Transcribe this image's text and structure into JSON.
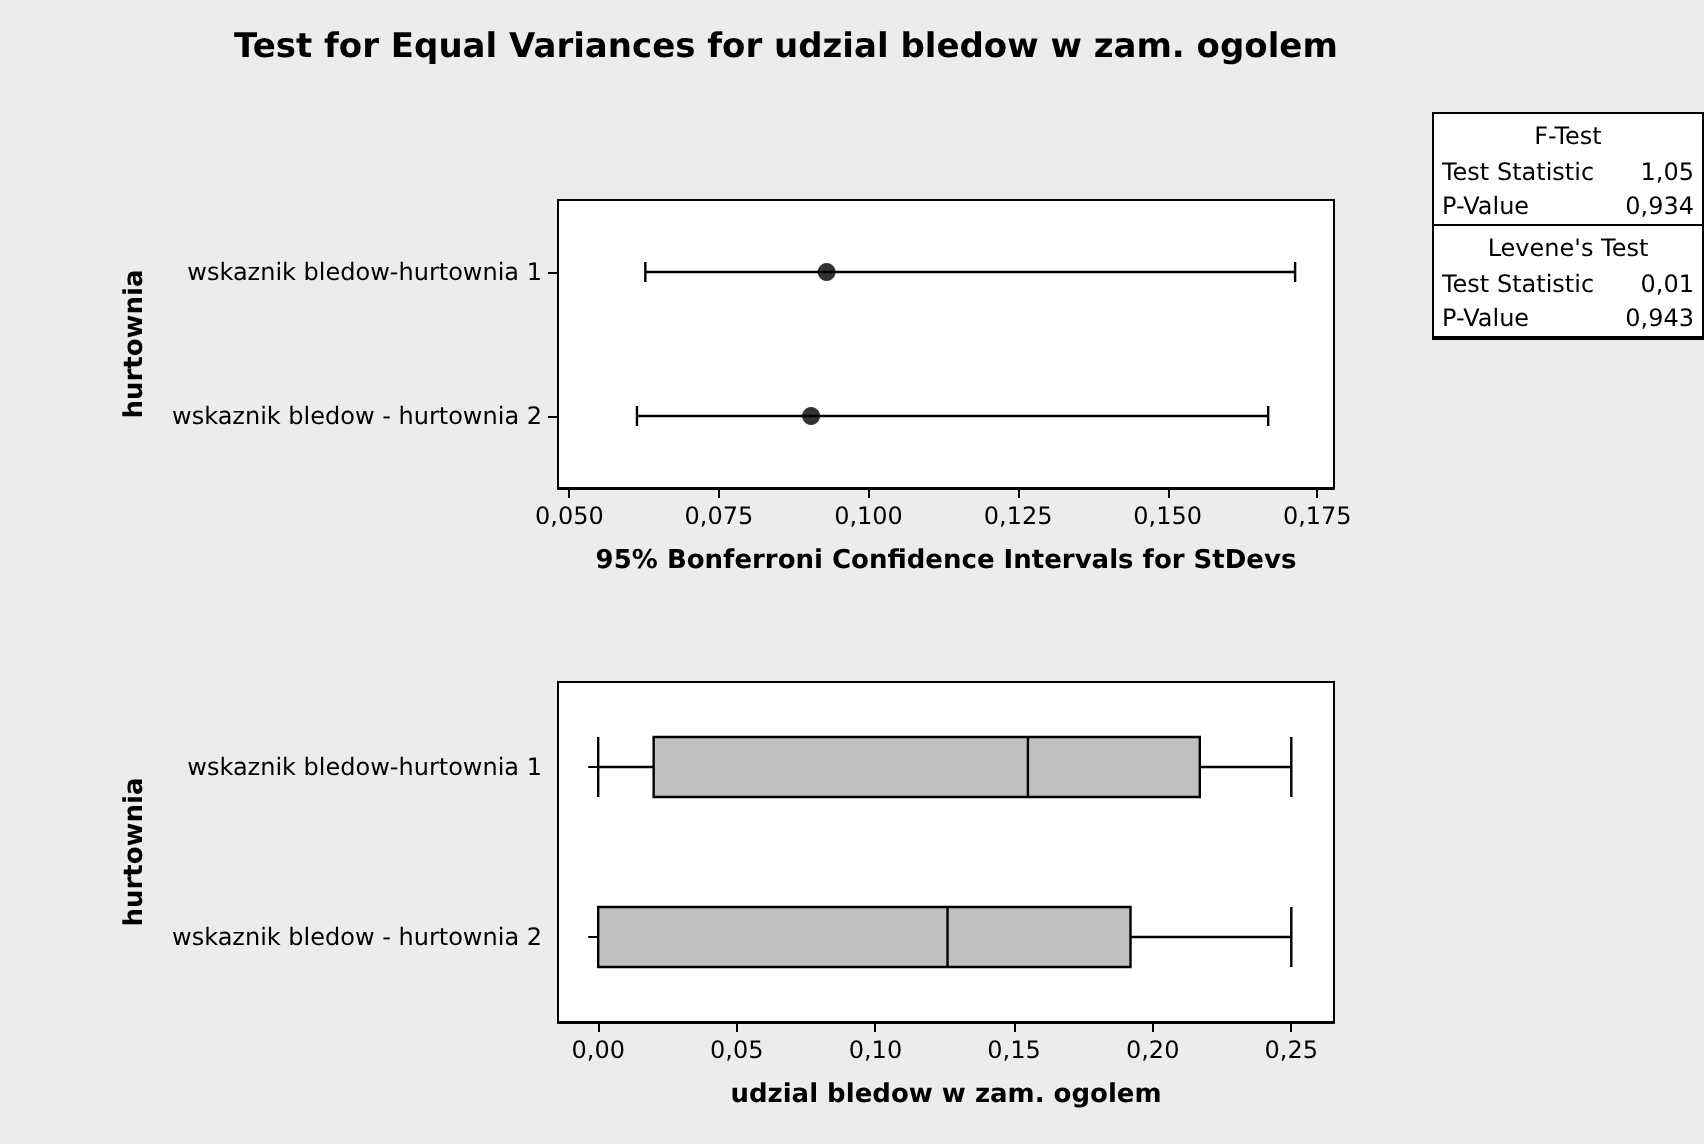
{
  "chart_data": [
    {
      "type": "scatter",
      "title": "Test for Equal Variances for udzial bledow w zam. ogolem",
      "orientation": "horizontal",
      "categories": [
        "wskaznik bledow-hurtownia 1",
        "wskaznik bledow - hurtownia 2"
      ],
      "series": [
        {
          "color": "#000000",
          "values": [
            0.093,
            0.0904
          ],
          "errors": [
            [
              0.0627,
              0.1713
            ],
            [
              0.0613,
              0.1668
            ]
          ]
        }
      ],
      "marker": "circle",
      "xlabel": "95% Bonferroni Confidence Intervals for StDevs",
      "ylabel": "hurtownia",
      "xlim": [
        0.0481,
        0.1778
      ],
      "xticks": [
        {
          "value": 0.05,
          "label": "0,050"
        },
        {
          "value": 0.075,
          "label": "0,075"
        },
        {
          "value": 0.1,
          "label": "0,100"
        },
        {
          "value": 0.125,
          "label": "0,125"
        },
        {
          "value": 0.15,
          "label": "0,150"
        },
        {
          "value": 0.175,
          "label": "0,175"
        }
      ],
      "grid": false
    },
    {
      "type": "box",
      "orientation": "horizontal",
      "categories": [
        "wskaznik bledow-hurtownia 1",
        "wskaznik bledow - hurtownia 2"
      ],
      "color": "#c0c0c0",
      "boxes": [
        {
          "low": 0,
          "q1": 0.02,
          "median": 0.155,
          "q3": 0.217,
          "high": 0.25
        },
        {
          "low": 0,
          "q1": 0,
          "median": 0.126,
          "q3": 0.192,
          "high": 0.25
        }
      ],
      "xlabel": "udzial bledow w zam. ogolem",
      "ylabel": "hurtownia",
      "xlim": [
        -0.0145,
        0.2654
      ],
      "xticks": [
        {
          "value": 0,
          "label": "0,00"
        },
        {
          "value": 0.05,
          "label": "0,05"
        },
        {
          "value": 0.1,
          "label": "0,10"
        },
        {
          "value": 0.15,
          "label": "0,15"
        },
        {
          "value": 0.2,
          "label": "0,20"
        },
        {
          "value": 0.25,
          "label": "0,25"
        }
      ],
      "grid": false
    },
    {
      "type": "other",
      "annotations": [
        "F-Test",
        "Test Statistic",
        "1,05",
        "P-Value",
        "0,934",
        "Levene's Test",
        "Test Statistic",
        "0,01",
        "P-Value",
        "0,943"
      ]
    }
  ]
}
